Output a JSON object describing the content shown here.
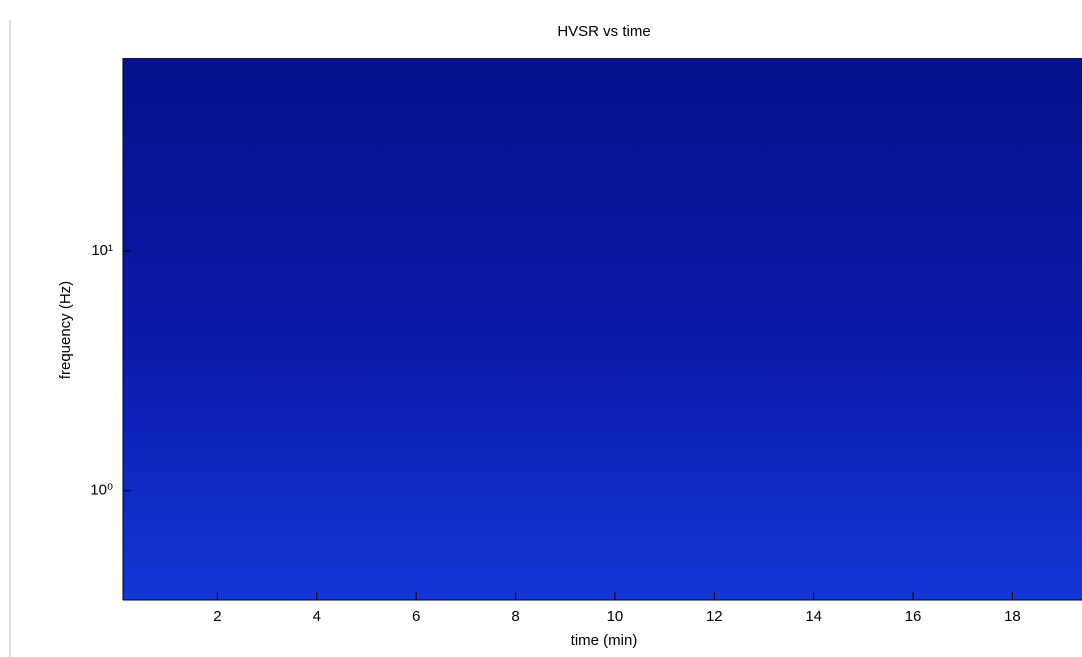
{
  "chart_data": {
    "type": "heatmap",
    "title": "HVSR vs time",
    "x_label": "time (min)",
    "y_label": "frequency (Hz)",
    "xlim": [
      0.1,
      19.4
    ],
    "xticks": [
      2,
      4,
      6,
      8,
      10,
      12,
      14,
      16,
      18
    ],
    "ylim": [
      0.35,
      64
    ],
    "y_log": true,
    "yticks": [
      {
        "value": 1,
        "label": "10⁰"
      },
      {
        "value": 10,
        "label": "10¹"
      }
    ]
  }
}
